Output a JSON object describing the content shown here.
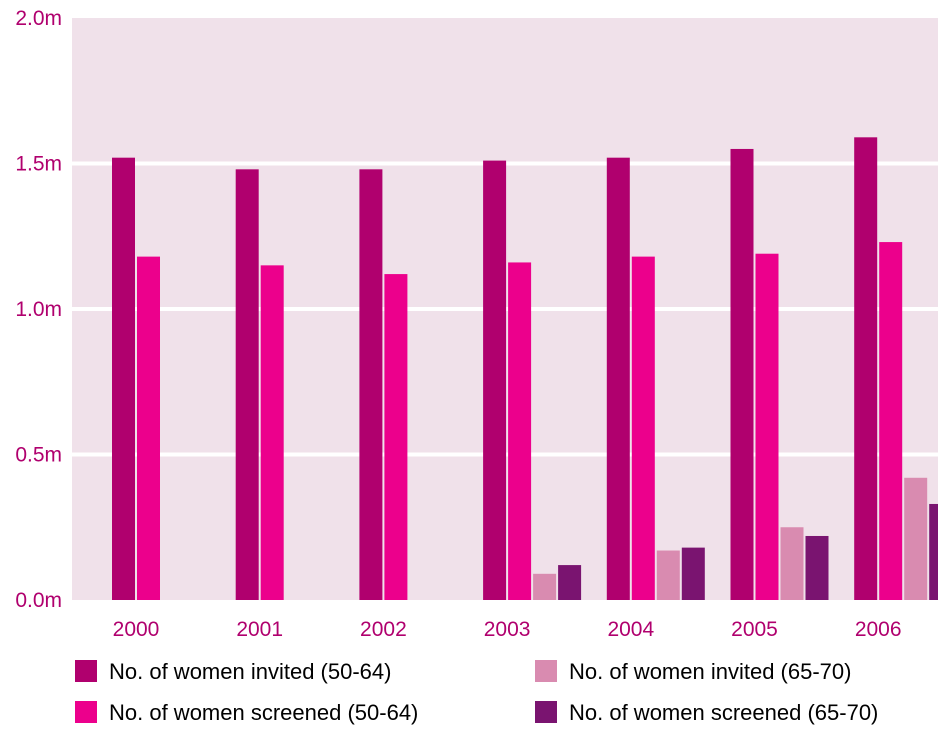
{
  "chart_data": {
    "type": "bar",
    "categories": [
      "2000",
      "2001",
      "2002",
      "2003",
      "2004",
      "2005",
      "2006"
    ],
    "series": [
      {
        "name": "No. of women invited (50-64)",
        "color": "#b0006e",
        "values": [
          1.52,
          1.48,
          1.48,
          1.51,
          1.52,
          1.55,
          1.59
        ]
      },
      {
        "name": "No. of women screened (50-64)",
        "color": "#ec008c",
        "values": [
          1.18,
          1.15,
          1.12,
          1.16,
          1.18,
          1.19,
          1.23
        ]
      },
      {
        "name": "No. of women invited (65-70)",
        "color": "#d98bb0",
        "values": [
          null,
          null,
          null,
          0.09,
          0.17,
          0.25,
          0.42
        ]
      },
      {
        "name": "No. of women screened (65-70)",
        "color": "#7a1470",
        "values": [
          null,
          null,
          null,
          0.12,
          0.18,
          0.22,
          0.33
        ]
      }
    ],
    "y_ticks": [
      "0.0m",
      "0.5m",
      "1.0m",
      "1.5m",
      "2.0m"
    ],
    "y_tick_values": [
      0,
      0.5,
      1.0,
      1.5,
      2.0
    ],
    "ylim": [
      0,
      2.0
    ],
    "grid": true,
    "legend_position": "bottom",
    "colors": {
      "plot_background": "#f0e1ea",
      "gridline": "#ffffff",
      "tick_label": "#b0006e",
      "legend_text": "#000000"
    }
  }
}
